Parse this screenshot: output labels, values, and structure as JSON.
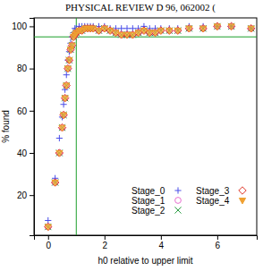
{
  "header": "PHYSICAL REVIEW D 96, 062002 (",
  "chart_data": {
    "type": "scatter",
    "x_label": "h0 relative to upper limit",
    "y_label": "% found",
    "xlim": [
      -0.5,
      7.4
    ],
    "ylim": [
      1,
      104
    ],
    "xticks": [
      0,
      2,
      4,
      6
    ],
    "yticks": [
      20,
      40,
      60,
      80,
      100
    ],
    "hline": 95,
    "vline": 1,
    "legend": "lower right",
    "x": [
      0,
      0.25,
      0.4,
      0.5,
      0.55,
      0.6,
      0.65,
      0.7,
      0.75,
      0.8,
      0.85,
      0.9,
      0.95,
      1.0,
      1.1,
      1.2,
      1.3,
      1.4,
      1.5,
      1.6,
      1.8,
      2.0,
      2.2,
      2.4,
      2.6,
      2.8,
      3.0,
      3.2,
      3.4,
      3.6,
      3.8,
      4.0,
      4.3,
      4.6,
      5.0,
      5.5,
      6.0,
      6.5,
      7.2
    ],
    "series": [
      {
        "name": "Stage_0",
        "color": "#4a4ee8",
        "marker": "plus",
        "values": [
          8,
          28,
          47,
          57,
          63,
          70,
          77,
          84,
          88,
          92,
          95,
          97,
          99,
          99,
          100,
          100,
          100,
          100,
          100,
          100,
          100,
          100,
          99,
          99,
          99,
          99,
          99,
          99,
          100,
          99,
          99,
          99,
          99,
          99,
          100,
          100,
          100,
          100,
          99
        ]
      },
      {
        "name": "Stage_1",
        "color": "#e86fd0",
        "marker": "circle",
        "values": [
          5,
          26,
          40,
          52,
          58,
          66,
          72,
          80,
          84,
          89,
          91,
          95,
          96,
          97,
          98,
          98,
          99,
          99,
          99,
          99,
          98,
          99,
          98,
          97,
          96,
          96,
          96,
          97,
          98,
          97,
          97,
          98,
          98,
          98,
          99,
          99,
          100,
          100,
          99
        ]
      },
      {
        "name": "Stage_2",
        "color": "#2e9e46",
        "marker": "x",
        "values": [
          5,
          26,
          40,
          52,
          58,
          66,
          72,
          80,
          84,
          89,
          91,
          95,
          96,
          97,
          98,
          98,
          99,
          99,
          99,
          99,
          98,
          99,
          98,
          97,
          96,
          96,
          96,
          97,
          98,
          97,
          97,
          98,
          98,
          98,
          99,
          99,
          100,
          100,
          99
        ]
      },
      {
        "name": "Stage_3",
        "color": "#e0392b",
        "marker": "diamond",
        "values": [
          5,
          26,
          40,
          52,
          58,
          66,
          72,
          80,
          84,
          89,
          91,
          95,
          96,
          97,
          98,
          98,
          99,
          99,
          99,
          99,
          98,
          99,
          98,
          97,
          96,
          96,
          96,
          97,
          98,
          97,
          97,
          98,
          98,
          98,
          99,
          99,
          100,
          100,
          99
        ]
      },
      {
        "name": "Stage_4",
        "color": "#f0a030",
        "marker": "triangle-down",
        "values": [
          5,
          26,
          40,
          52,
          58,
          66,
          72,
          80,
          84,
          89,
          91,
          95,
          96,
          97,
          98,
          98,
          99,
          99,
          99,
          99,
          98,
          99,
          98,
          97,
          96,
          96,
          96,
          97,
          98,
          97,
          97,
          98,
          98,
          98,
          99,
          99,
          100,
          100,
          99
        ]
      }
    ]
  }
}
